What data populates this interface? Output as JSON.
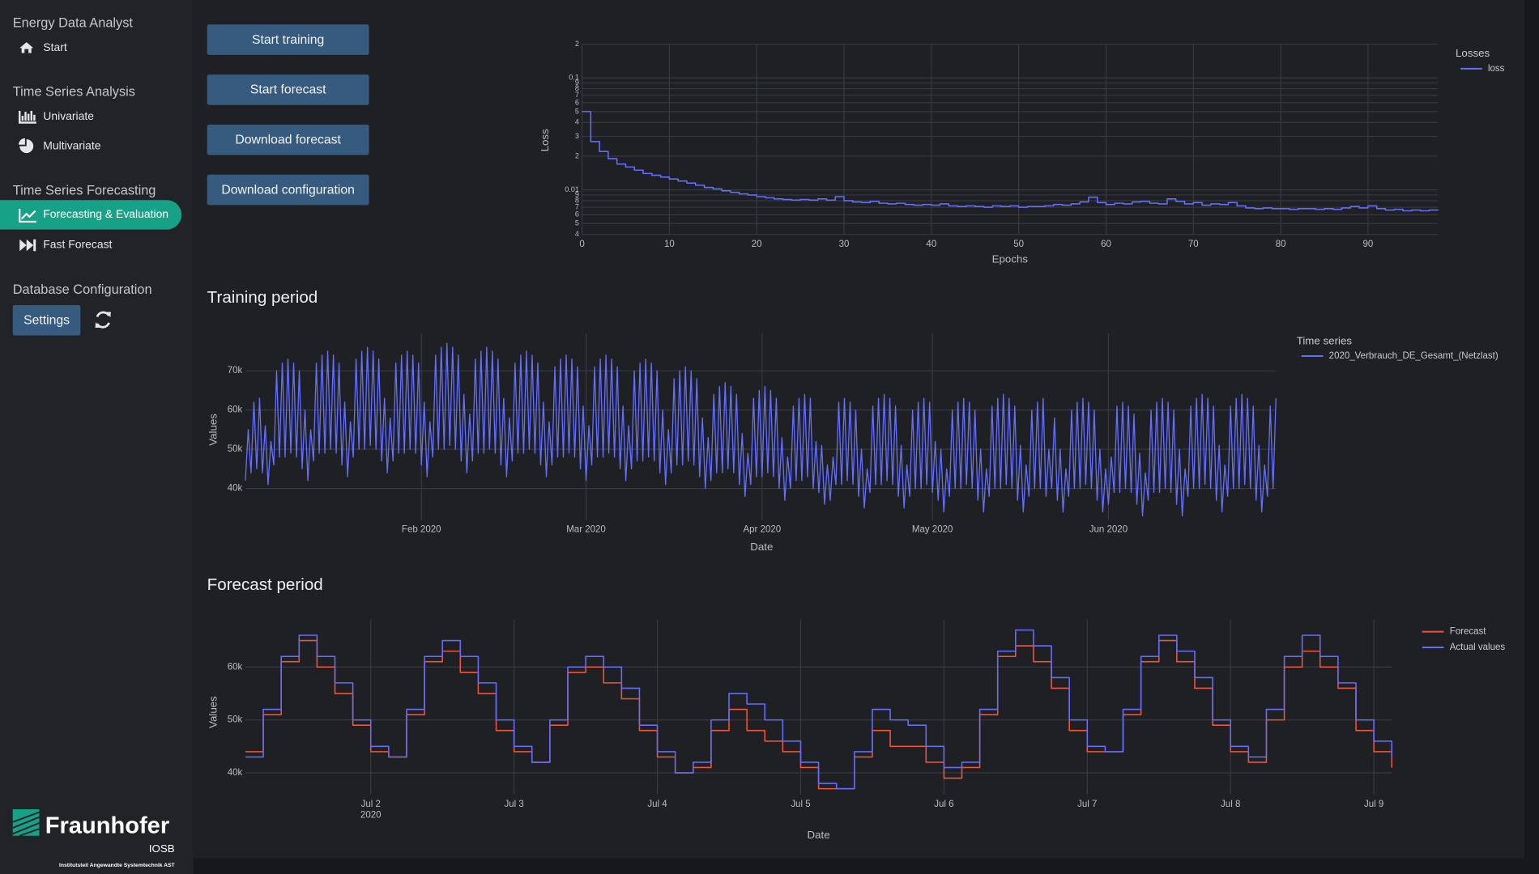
{
  "sidebar": {
    "app_title": "Energy Data Analyst",
    "start": "Start",
    "sections": [
      {
        "title": "Time Series Analysis",
        "items": [
          "Univariate",
          "Multivariate"
        ]
      },
      {
        "title": "Time Series Forecasting",
        "items": [
          "Forecasting & Evaluation",
          "Fast Forecast"
        ]
      },
      {
        "title": "Database Configuration",
        "items": [
          "Settings"
        ]
      }
    ]
  },
  "logo": {
    "name": "Fraunhofer",
    "unit": "IOSB",
    "caption": "Institutsteil Angewandte Systemtechnik AST"
  },
  "buttons": [
    "Start training",
    "Start forecast",
    "Download forecast",
    "Download configuration"
  ],
  "sections": {
    "training": "Training period",
    "forecast": "Forecast period"
  },
  "chart_data": [
    {
      "type": "line",
      "line_shape": "hv",
      "log_y": true,
      "grid": true,
      "x_label": "Epochs",
      "y_label": "Loss",
      "legend_title": "Losses",
      "legend": "right",
      "xlim": [
        0,
        98
      ],
      "xticks": [
        0,
        10,
        20,
        30,
        40,
        50,
        60,
        70,
        80,
        90
      ],
      "ylim": [
        0.004,
        0.2
      ],
      "yticks": [
        {
          "value": 0.2,
          "label": "2"
        },
        0.1,
        {
          "value": 0.09,
          "label": "9"
        },
        {
          "value": 0.08,
          "label": "8"
        },
        {
          "value": 0.07,
          "label": "7"
        },
        {
          "value": 0.06,
          "label": "6"
        },
        {
          "value": 0.05,
          "label": "5"
        },
        {
          "value": 0.04,
          "label": "4"
        },
        {
          "value": 0.03,
          "label": "3"
        },
        {
          "value": 0.02,
          "label": "2"
        },
        0.01,
        {
          "value": 0.009,
          "label": "9"
        },
        {
          "value": 0.008,
          "label": "8"
        },
        {
          "value": 0.007,
          "label": "7"
        },
        {
          "value": 0.006,
          "label": "6"
        },
        {
          "value": 0.005,
          "label": "5"
        },
        {
          "value": 0.004,
          "label": "4"
        }
      ],
      "series": [
        {
          "name": "loss",
          "color": "#636efa",
          "values": [
            0.05,
            0.027,
            0.022,
            0.019,
            0.017,
            0.016,
            0.015,
            0.014,
            0.0135,
            0.013,
            0.0125,
            0.012,
            0.0115,
            0.011,
            0.0105,
            0.0102,
            0.0098,
            0.0095,
            0.0092,
            0.009,
            0.0087,
            0.0085,
            0.0083,
            0.0082,
            0.0081,
            0.0082,
            0.0081,
            0.0083,
            0.0081,
            0.0087,
            0.008,
            0.0078,
            0.0077,
            0.0079,
            0.0076,
            0.0075,
            0.0076,
            0.0074,
            0.0073,
            0.0074,
            0.0073,
            0.0075,
            0.0072,
            0.0071,
            0.0072,
            0.0071,
            0.007,
            0.0072,
            0.0071,
            0.0072,
            0.007,
            0.0071,
            0.0071,
            0.0072,
            0.0074,
            0.0073,
            0.0075,
            0.0078,
            0.0086,
            0.0077,
            0.0074,
            0.0076,
            0.0075,
            0.0078,
            0.0079,
            0.0076,
            0.0075,
            0.0083,
            0.0079,
            0.0075,
            0.0077,
            0.0073,
            0.0075,
            0.0074,
            0.0077,
            0.0072,
            0.0069,
            0.0068,
            0.0069,
            0.0068,
            0.0068,
            0.0067,
            0.0068,
            0.0068,
            0.0067,
            0.0068,
            0.0067,
            0.0069,
            0.0071,
            0.0069,
            0.0072,
            0.0068,
            0.0066,
            0.0067,
            0.0065,
            0.0066,
            0.0065,
            0.0066,
            0.0067
          ]
        }
      ]
    },
    {
      "type": "line",
      "line_shape": "linear",
      "log_y": false,
      "grid": true,
      "x_label": "Date",
      "y_label": "Values",
      "legend_title": "Time series",
      "legend": "right",
      "xlim": [
        0,
        363
      ],
      "xticks": [
        {
          "value": 62,
          "label": "Feb 2020"
        },
        {
          "value": 120,
          "label": "Mar 2020"
        },
        {
          "value": 182,
          "label": "Apr 2020"
        },
        {
          "value": 242,
          "label": "May 2020"
        },
        {
          "value": 304,
          "label": "Jun 2020"
        }
      ],
      "ylim": [
        32000,
        79500
      ],
      "yticks": [
        {
          "value": 40000,
          "label": "40k"
        },
        {
          "value": 50000,
          "label": "50k"
        },
        {
          "value": 60000,
          "label": "60k"
        },
        {
          "value": 70000,
          "label": "70k"
        }
      ],
      "series": [
        {
          "name": "2020_Verbrauch_DE_Gesamt_(Netzlast)",
          "color": "#636efa",
          "values": [
            42000,
            55000,
            44000,
            62000,
            45000,
            63000,
            44000,
            56000,
            41000,
            52000,
            46000,
            70000,
            48000,
            72000,
            48000,
            73000,
            49000,
            72000,
            48000,
            70000,
            45000,
            60000,
            42000,
            55000,
            47000,
            72000,
            49000,
            74000,
            49000,
            75000,
            50000,
            74000,
            49000,
            72000,
            46000,
            62000,
            43000,
            57000,
            48000,
            73000,
            50000,
            75000,
            50000,
            76000,
            51000,
            75000,
            50000,
            73000,
            47000,
            63000,
            44000,
            58000,
            47000,
            72000,
            49000,
            74000,
            49000,
            75000,
            50000,
            74000,
            49000,
            72000,
            46000,
            62000,
            43000,
            57000,
            48000,
            74000,
            50000,
            76000,
            50000,
            77000,
            51000,
            76000,
            50000,
            74000,
            47000,
            64000,
            44000,
            59000,
            47000,
            73000,
            49000,
            75000,
            49000,
            76000,
            50000,
            75000,
            49000,
            73000,
            46000,
            63000,
            43000,
            58000,
            47000,
            72000,
            49000,
            74000,
            49000,
            75000,
            50000,
            74000,
            49000,
            72000,
            46000,
            62000,
            43000,
            57000,
            46000,
            71000,
            48000,
            73000,
            48000,
            74000,
            49000,
            73000,
            48000,
            71000,
            45000,
            61000,
            42000,
            56000,
            46000,
            71000,
            48000,
            73000,
            48000,
            74000,
            49000,
            73000,
            48000,
            71000,
            45000,
            61000,
            42000,
            56000,
            45000,
            70000,
            47000,
            72000,
            47000,
            73000,
            48000,
            72000,
            47000,
            70000,
            44000,
            60000,
            41000,
            55000,
            44000,
            68000,
            46000,
            70000,
            46000,
            71000,
            47000,
            70000,
            46000,
            68000,
            43000,
            58000,
            40000,
            53000,
            42000,
            64000,
            44000,
            66000,
            44000,
            67000,
            45000,
            66000,
            44000,
            64000,
            41000,
            54000,
            38000,
            49000,
            41000,
            63000,
            43000,
            65000,
            43000,
            66000,
            44000,
            65000,
            43000,
            63000,
            40000,
            53000,
            37000,
            48000,
            40000,
            61000,
            42000,
            63000,
            42000,
            64000,
            43000,
            63000,
            40000,
            52000,
            39000,
            51000,
            36000,
            46000,
            37000,
            48000,
            41000,
            62000,
            41000,
            63000,
            42000,
            62000,
            41000,
            60000,
            38000,
            50000,
            35000,
            45000,
            39000,
            61000,
            41000,
            63000,
            41000,
            64000,
            42000,
            63000,
            41000,
            61000,
            38000,
            51000,
            35000,
            46000,
            38000,
            60000,
            40000,
            62000,
            40000,
            63000,
            41000,
            62000,
            39000,
            52000,
            37000,
            50000,
            34000,
            45000,
            38000,
            60000,
            40000,
            62000,
            40000,
            63000,
            41000,
            62000,
            40000,
            60000,
            37000,
            50000,
            34000,
            45000,
            38000,
            61000,
            40000,
            63000,
            40000,
            64000,
            41000,
            63000,
            40000,
            61000,
            37000,
            51000,
            34000,
            46000,
            38000,
            60000,
            40000,
            62000,
            40000,
            63000,
            38000,
            50000,
            40000,
            58000,
            37000,
            50000,
            34000,
            45000,
            38000,
            60000,
            40000,
            62000,
            40000,
            63000,
            41000,
            62000,
            40000,
            60000,
            37000,
            50000,
            34000,
            45000,
            36000,
            48000,
            39000,
            61000,
            39000,
            62000,
            40000,
            61000,
            39000,
            59000,
            36000,
            49000,
            33000,
            44000,
            37000,
            60000,
            39000,
            62000,
            39000,
            63000,
            40000,
            62000,
            39000,
            60000,
            36000,
            50000,
            33000,
            45000,
            38000,
            61000,
            40000,
            63000,
            40000,
            64000,
            41000,
            63000,
            40000,
            61000,
            37000,
            51000,
            34000,
            46000,
            38000,
            61000,
            40000,
            63000,
            40000,
            64000,
            41000,
            63000,
            40000,
            61000,
            37000,
            51000,
            34000,
            46000,
            38000,
            61000,
            40000,
            63000
          ]
        }
      ]
    },
    {
      "type": "line",
      "line_shape": "hv",
      "log_y": false,
      "grid": true,
      "x_label": "Date",
      "y_label": "Values",
      "legend": "right",
      "xlim": [
        0,
        64
      ],
      "xticks": [
        {
          "value": 7,
          "label": "Jul 2"
        },
        {
          "value": 15,
          "label": "Jul 3"
        },
        {
          "value": 23,
          "label": "Jul 4"
        },
        {
          "value": 31,
          "label": "Jul 5"
        },
        {
          "value": 39,
          "label": "Jul 6"
        },
        {
          "value": 47,
          "label": "Jul 7"
        },
        {
          "value": 55,
          "label": "Jul 8"
        },
        {
          "value": 63,
          "label": "Jul 9"
        }
      ],
      "xtick_sublabel": "2020",
      "ylim": [
        35900,
        68900
      ],
      "yticks": [
        {
          "value": 40000,
          "label": "40k"
        },
        {
          "value": 50000,
          "label": "50k"
        },
        {
          "value": 60000,
          "label": "60k"
        }
      ],
      "series": [
        {
          "name": "Forecast",
          "color": "#ef553b",
          "values": [
            44000,
            51000,
            61000,
            65000,
            60000,
            55000,
            49000,
            44000,
            43000,
            51000,
            61000,
            63000,
            59000,
            55000,
            48000,
            44000,
            42000,
            49000,
            59000,
            60000,
            57000,
            54000,
            48000,
            43000,
            40000,
            41000,
            48000,
            52000,
            48000,
            46000,
            44000,
            41000,
            37000,
            37000,
            43000,
            48000,
            45000,
            45000,
            42000,
            39000,
            41000,
            51000,
            62000,
            64000,
            61000,
            56000,
            48000,
            44000,
            44000,
            51000,
            61000,
            65000,
            61000,
            56000,
            49000,
            44000,
            42000,
            50000,
            60000,
            63000,
            60000,
            56000,
            48000,
            44000,
            41000
          ]
        },
        {
          "name": "Actual values",
          "color": "#636efa",
          "values": [
            43000,
            52000,
            62000,
            66000,
            62000,
            57000,
            50000,
            45000,
            43000,
            52000,
            62000,
            65000,
            62000,
            57000,
            50000,
            45000,
            42000,
            50000,
            60000,
            62000,
            60000,
            56000,
            49000,
            44000,
            40000,
            42000,
            50000,
            55000,
            53000,
            50000,
            46000,
            42000,
            38000,
            37000,
            44000,
            52000,
            50000,
            49000,
            45000,
            41000,
            42000,
            52000,
            63000,
            67000,
            64000,
            58000,
            50000,
            45000,
            44000,
            52000,
            62000,
            66000,
            63000,
            58000,
            50000,
            45000,
            43000,
            52000,
            62000,
            66000,
            62000,
            57000,
            50000,
            46000,
            43000
          ]
        }
      ]
    }
  ]
}
